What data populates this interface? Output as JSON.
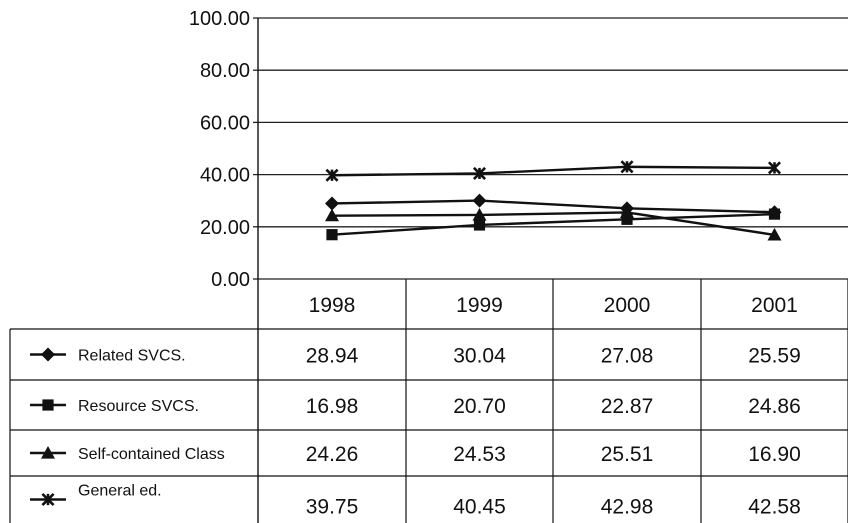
{
  "chart_data": {
    "type": "line",
    "categories": [
      "1998",
      "1999",
      "2000",
      "2001"
    ],
    "ylim": [
      0,
      100
    ],
    "yticks": [
      "0.00",
      "20.00",
      "40.00",
      "60.00",
      "80.00",
      "100.00"
    ],
    "grid": true,
    "legend": "data table below chart",
    "series": [
      {
        "name": "Related SVCS.",
        "marker": "diamond",
        "values": [
          28.94,
          30.04,
          27.08,
          25.59
        ],
        "labels": [
          "28.94",
          "30.04",
          "27.08",
          "25.59"
        ]
      },
      {
        "name": "Resource SVCS.",
        "marker": "square",
        "values": [
          16.98,
          20.7,
          22.87,
          24.86
        ],
        "labels": [
          "16.98",
          "20.70",
          "22.87",
          "24.86"
        ]
      },
      {
        "name": "Self-contained Class",
        "marker": "triangle",
        "values": [
          24.26,
          24.53,
          25.51,
          16.9
        ],
        "labels": [
          "24.26",
          "24.53",
          "25.51",
          "16.90"
        ]
      },
      {
        "name": "General ed.",
        "marker": "star",
        "values": [
          39.75,
          40.45,
          42.98,
          42.58
        ],
        "labels": [
          "39.75",
          "40.45",
          "42.98",
          "42.58"
        ]
      }
    ],
    "colors": {
      "line": "#111111",
      "grid": "#222222"
    }
  }
}
